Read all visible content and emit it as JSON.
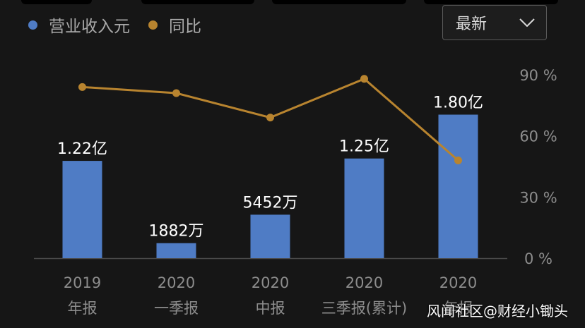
{
  "legend": {
    "revenue": "营业收入元",
    "yoy": "同比"
  },
  "dropdown": {
    "selected": "最新",
    "icon": "chevron-down-icon"
  },
  "watermark": "风闻社区@财经小锄头",
  "colors": {
    "bar": "#4f7cc5",
    "line": "#b8842f",
    "axis_text": "#8c8c8c",
    "label_text": "#ffffff"
  },
  "chart_data": {
    "type": "bar",
    "categories": [
      "2019\n年报",
      "2020\n一季报",
      "2020\n中报",
      "2020\n三季报(累计)",
      "2020\n年报"
    ],
    "series": [
      {
        "name": "营业收入元",
        "type": "bar",
        "values": [
          122000000,
          18820000,
          54520000,
          125000000,
          180000000
        ],
        "labels": [
          "1.22亿",
          "1882万",
          "5452万",
          "1.25亿",
          "1.80亿"
        ]
      },
      {
        "name": "同比",
        "type": "line",
        "axis": "right",
        "values": [
          84,
          81,
          69,
          88,
          48
        ]
      }
    ],
    "y_right_ticks": [
      "0 %",
      "30 %",
      "60 %",
      "90 %"
    ],
    "y_right_range": [
      0,
      90
    ],
    "y_left_range": [
      0,
      230000000
    ],
    "grid": false,
    "legend_position": "top-left"
  }
}
